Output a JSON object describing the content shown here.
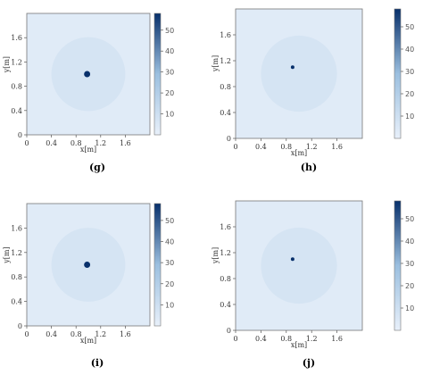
{
  "colormap": {
    "low": "#e8f0fa",
    "mid": "#9bbfdf",
    "high": "#08306b"
  },
  "chart_data": [
    {
      "type": "heatmap",
      "caption": "(g)",
      "xlabel": "x[m]",
      "ylabel": "y[m]",
      "xlim": [
        0,
        2
      ],
      "ylim": [
        0,
        2
      ],
      "xticks": [
        0,
        0.4,
        0.8,
        1.2,
        1.6
      ],
      "xtick_labels": [
        "0",
        "0.4",
        "0.8",
        "1.2",
        "1.6"
      ],
      "yticks": [
        0,
        0.4,
        0.8,
        1.2,
        1.6
      ],
      "ytick_labels": [
        "0",
        "0.4",
        "0.8",
        "1.2",
        "1.6"
      ],
      "background_value": 3,
      "region": {
        "shape": "circle",
        "cx": 1.0,
        "cy": 1.0,
        "r": 0.6,
        "value": 7
      },
      "source": {
        "shape": "circle",
        "cx": 0.98,
        "cy": 1.0,
        "r": 0.05,
        "value": 58
      },
      "colorbar": {
        "min": 0,
        "max": 58,
        "ticks": [
          10,
          20,
          30,
          40,
          50
        ],
        "tick_labels": [
          "10",
          "20",
          "30",
          "40",
          "50"
        ]
      }
    },
    {
      "type": "heatmap",
      "caption": "(h)",
      "xlabel": "x[m]",
      "ylabel": "y[m]",
      "xlim": [
        0,
        2
      ],
      "ylim": [
        0,
        2
      ],
      "xticks": [
        0,
        0.4,
        0.8,
        1.2,
        1.6
      ],
      "xtick_labels": [
        "0",
        "0.4",
        "0.8",
        "1.2",
        "1.6"
      ],
      "yticks": [
        0,
        0.4,
        0.8,
        1.2,
        1.6
      ],
      "ytick_labels": [
        "0",
        "0.4",
        "0.8",
        "1.2",
        "1.6"
      ],
      "background_value": 3,
      "region": {
        "shape": "circle",
        "cx": 1.0,
        "cy": 1.0,
        "r": 0.6,
        "value": 7
      },
      "source": {
        "shape": "circle",
        "cx": 0.9,
        "cy": 1.1,
        "r": 0.025,
        "value": 58
      },
      "colorbar": {
        "min": 0,
        "max": 58,
        "ticks": [
          10,
          20,
          30,
          40,
          50
        ],
        "tick_labels": [
          "10",
          "20",
          "30",
          "40",
          "50"
        ]
      }
    },
    {
      "type": "heatmap",
      "caption": "(i)",
      "xlabel": "x[m]",
      "ylabel": "y[m]",
      "xlim": [
        0,
        2
      ],
      "ylim": [
        0,
        2
      ],
      "xticks": [
        0,
        0.4,
        0.8,
        1.2,
        1.6
      ],
      "xtick_labels": [
        "0",
        "0.4",
        "0.8",
        "1.2",
        "1.6"
      ],
      "yticks": [
        0,
        0.4,
        0.8,
        1.2,
        1.6
      ],
      "ytick_labels": [
        "0",
        "0.4",
        "0.8",
        "1.2",
        "1.6"
      ],
      "background_value": 3,
      "region": {
        "shape": "circle",
        "cx": 1.0,
        "cy": 1.0,
        "r": 0.6,
        "value": 7
      },
      "source": {
        "shape": "circle",
        "cx": 0.98,
        "cy": 1.0,
        "r": 0.05,
        "value": 58
      },
      "colorbar": {
        "min": 0,
        "max": 58,
        "ticks": [
          10,
          20,
          30,
          40,
          50
        ],
        "tick_labels": [
          "10",
          "20",
          "30",
          "40",
          "50"
        ]
      }
    },
    {
      "type": "heatmap",
      "caption": "(j)",
      "xlabel": "x[m]",
      "ylabel": "y[m]",
      "xlim": [
        0,
        2
      ],
      "ylim": [
        0,
        2
      ],
      "xticks": [
        0,
        0.4,
        0.8,
        1.2,
        1.6
      ],
      "xtick_labels": [
        "0",
        "0.4",
        "0.8",
        "1.2",
        "1.6"
      ],
      "yticks": [
        0,
        0.4,
        0.8,
        1.2,
        1.6
      ],
      "ytick_labels": [
        "0",
        "0.4",
        "0.8",
        "1.2",
        "1.6"
      ],
      "background_value": 3,
      "region": {
        "shape": "circle",
        "cx": 1.0,
        "cy": 1.0,
        "r": 0.6,
        "value": 7
      },
      "source": {
        "shape": "circle",
        "cx": 0.9,
        "cy": 1.1,
        "r": 0.025,
        "value": 58
      },
      "colorbar": {
        "min": 0,
        "max": 58,
        "ticks": [
          10,
          20,
          30,
          40,
          50
        ],
        "tick_labels": [
          "10",
          "20",
          "30",
          "40",
          "50"
        ]
      }
    }
  ]
}
